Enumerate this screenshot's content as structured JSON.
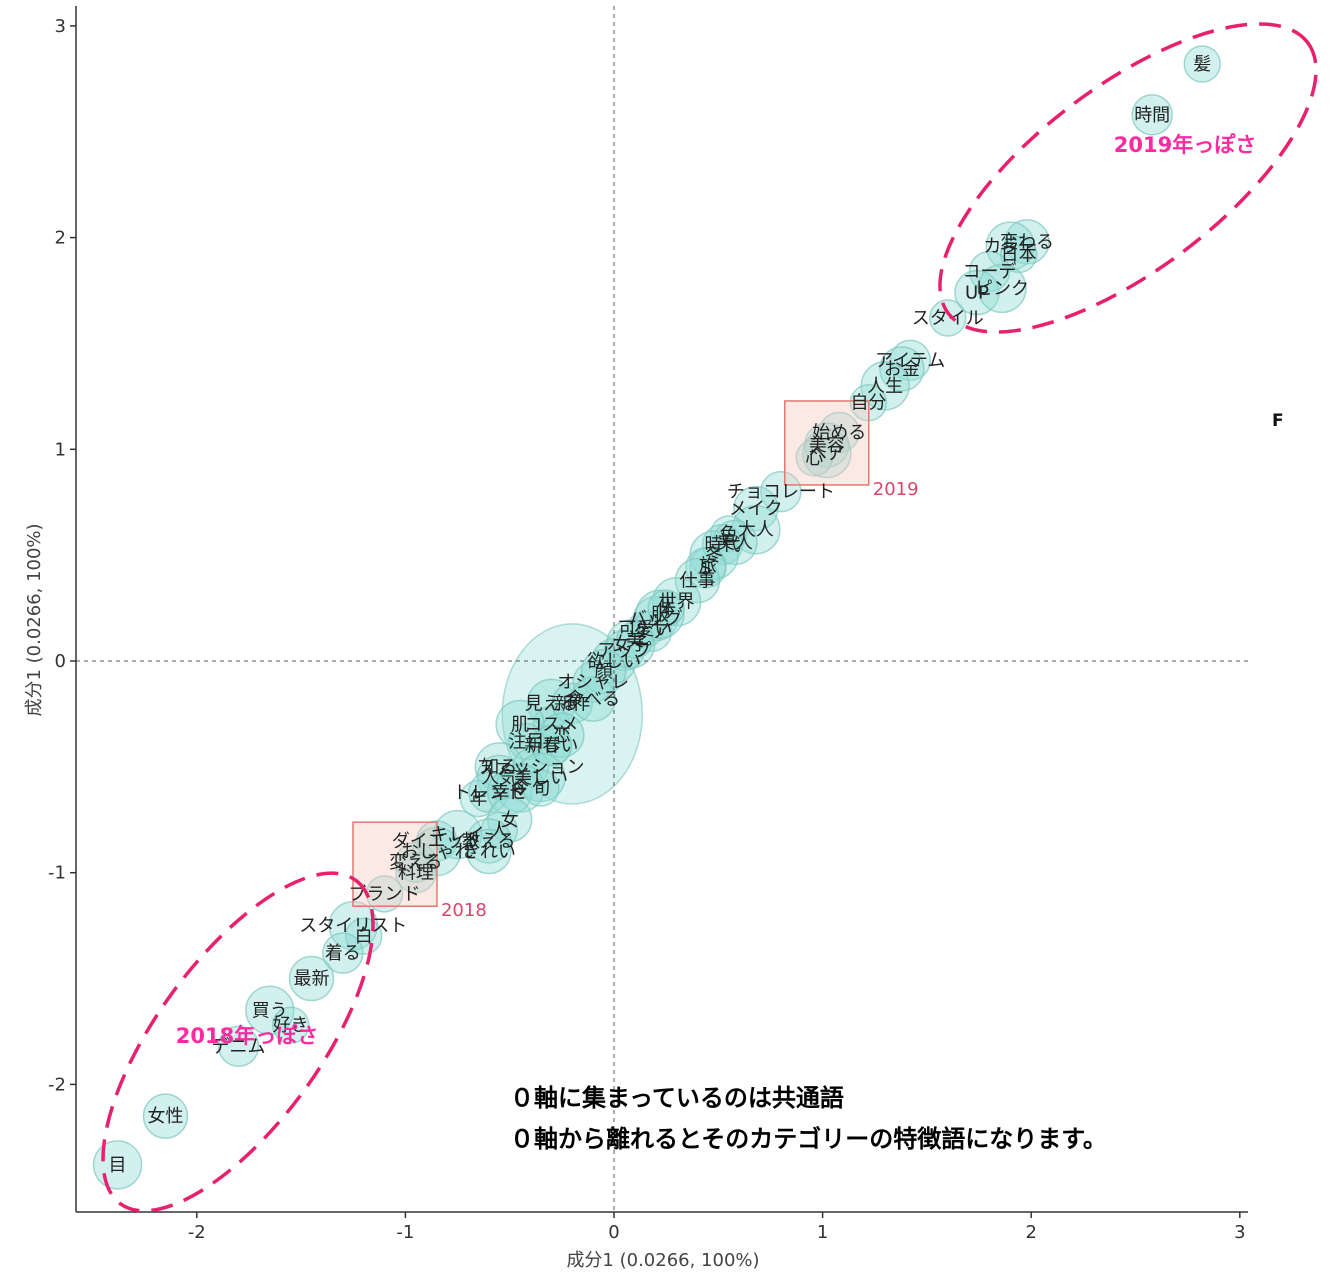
{
  "chart_data": {
    "type": "scatter",
    "xlabel": "成分1 (0.0266, 100%)",
    "ylabel": "成分1 (0.0266, 100%)",
    "xlim": [
      -2.6,
      3.05
    ],
    "ylim": [
      -2.6,
      3.1
    ],
    "x_ticks": [
      -2,
      -1,
      0,
      1,
      2,
      3
    ],
    "y_ticks": [
      -2,
      -1,
      0,
      1,
      2,
      3
    ],
    "reference_lines": {
      "x": 0,
      "y": 0,
      "style": "dashed"
    },
    "grid": false,
    "marker_color": "#8fdcd4",
    "accent_color": "#ff2aa0",
    "categories": [
      {
        "label": "2018",
        "x": -1.05,
        "y": -0.96
      },
      {
        "label": "2019",
        "x": 1.02,
        "y": 1.03
      }
    ],
    "words": [
      {
        "label": "髪",
        "x": 2.82,
        "y": 2.82
      },
      {
        "label": "時間",
        "x": 2.58,
        "y": 2.58
      },
      {
        "label": "変わる",
        "x": 1.98,
        "y": 1.98
      },
      {
        "label": "カラー",
        "x": 1.9,
        "y": 1.96
      },
      {
        "label": "日本",
        "x": 1.94,
        "y": 1.92
      },
      {
        "label": "コーデ",
        "x": 1.8,
        "y": 1.84
      },
      {
        "label": "UP",
        "x": 1.74,
        "y": 1.74
      },
      {
        "label": "ピンク",
        "x": 1.86,
        "y": 1.76
      },
      {
        "label": "スタイル",
        "x": 1.6,
        "y": 1.62
      },
      {
        "label": "アイテム",
        "x": 1.42,
        "y": 1.42
      },
      {
        "label": "お金",
        "x": 1.38,
        "y": 1.38
      },
      {
        "label": "人生",
        "x": 1.3,
        "y": 1.3
      },
      {
        "label": "自分",
        "x": 1.22,
        "y": 1.22
      },
      {
        "label": "始める",
        "x": 1.08,
        "y": 1.08
      },
      {
        "label": "美容",
        "x": 1.02,
        "y": 1.02
      },
      {
        "label": "ヘア",
        "x": 1.02,
        "y": 0.98
      },
      {
        "label": "心",
        "x": 0.96,
        "y": 0.96
      },
      {
        "label": "チョコレート",
        "x": 0.8,
        "y": 0.8
      },
      {
        "label": "メイク",
        "x": 0.68,
        "y": 0.72
      },
      {
        "label": "大人",
        "x": 0.68,
        "y": 0.62
      },
      {
        "label": "色",
        "x": 0.55,
        "y": 0.6
      },
      {
        "label": "時代",
        "x": 0.52,
        "y": 0.55
      },
      {
        "label": "美人",
        "x": 0.58,
        "y": 0.56
      },
      {
        "label": "冬",
        "x": 0.48,
        "y": 0.5
      },
      {
        "label": "旅",
        "x": 0.45,
        "y": 0.45
      },
      {
        "label": "S",
        "x": 0.44,
        "y": 0.44
      },
      {
        "label": "仕事",
        "x": 0.4,
        "y": 0.38
      },
      {
        "label": "世界",
        "x": 0.3,
        "y": 0.28
      },
      {
        "label": "可愛い",
        "x": 0.15,
        "y": 0.15
      },
      {
        "label": "ケア",
        "x": 0.18,
        "y": 0.14
      },
      {
        "label": "バッグ",
        "x": 0.2,
        "y": 0.2
      },
      {
        "label": "服",
        "x": 0.22,
        "y": 0.22
      },
      {
        "label": "体",
        "x": 0.25,
        "y": 0.25
      },
      {
        "label": "アップ",
        "x": 0.05,
        "y": 0.05
      },
      {
        "label": "欲しい",
        "x": 0.0,
        "y": 0.0
      },
      {
        "label": "女子",
        "x": 0.08,
        "y": 0.08
      },
      {
        "label": "美",
        "x": 0.1,
        "y": 0.1
      },
      {
        "label": "オシャレ",
        "x": -0.1,
        "y": -0.1
      },
      {
        "label": "顔",
        "x": -0.05,
        "y": -0.05
      },
      {
        "label": "見える",
        "x": -0.3,
        "y": -0.2
      },
      {
        "label": "コスメ",
        "x": -0.3,
        "y": -0.3
      },
      {
        "label": "新作",
        "x": -0.2,
        "y": -0.2
      },
      {
        "label": "食べる",
        "x": -0.1,
        "y": -0.18
      },
      {
        "label": "肌",
        "x": -0.45,
        "y": -0.3
      },
      {
        "label": "注目",
        "x": -0.42,
        "y": -0.38
      },
      {
        "label": "春",
        "x": -0.3,
        "y": -0.4
      },
      {
        "label": "恋",
        "x": -0.25,
        "y": -0.35
      },
      {
        "label": "知る",
        "x": -0.55,
        "y": -0.5
      },
      {
        "label": "ファッション",
        "x": -0.4,
        "y": -0.5
      },
      {
        "label": "新しい",
        "x": -0.3,
        "y": -0.4
      },
      {
        "label": "人気",
        "x": -0.55,
        "y": -0.55
      },
      {
        "label": "美しい",
        "x": -0.35,
        "y": -0.55
      },
      {
        "label": "年",
        "x": -0.65,
        "y": -0.65
      },
      {
        "label": "トレンド",
        "x": -0.6,
        "y": -0.62
      },
      {
        "label": "幸せ",
        "x": -0.5,
        "y": -0.62
      },
      {
        "label": "今",
        "x": -0.45,
        "y": -0.6
      },
      {
        "label": "旬",
        "x": -0.35,
        "y": -0.6
      },
      {
        "label": "ダイエット",
        "x": -0.85,
        "y": -0.85
      },
      {
        "label": "女",
        "x": -0.5,
        "y": -0.75
      },
      {
        "label": "キレイ",
        "x": -0.75,
        "y": -0.82
      },
      {
        "label": "人",
        "x": -0.55,
        "y": -0.8
      },
      {
        "label": "変える",
        "x": -0.95,
        "y": -0.95
      },
      {
        "label": "教える",
        "x": -0.6,
        "y": -0.85
      },
      {
        "label": "おしゃれ",
        "x": -0.85,
        "y": -0.9
      },
      {
        "label": "ブランド",
        "x": -1.1,
        "y": -1.1
      },
      {
        "label": "料理",
        "x": -0.95,
        "y": -1.0
      },
      {
        "label": "きれい",
        "x": -0.6,
        "y": -0.9
      },
      {
        "label": "スタイリスト",
        "x": -1.25,
        "y": -1.25
      },
      {
        "label": "白",
        "x": -1.2,
        "y": -1.3
      },
      {
        "label": "着る",
        "x": -1.3,
        "y": -1.38
      },
      {
        "label": "最新",
        "x": -1.45,
        "y": -1.5
      },
      {
        "label": "買う",
        "x": -1.65,
        "y": -1.65
      },
      {
        "label": "好き",
        "x": -1.55,
        "y": -1.72
      },
      {
        "label": "デニム",
        "x": -1.8,
        "y": -1.82
      },
      {
        "label": "女性",
        "x": -2.15,
        "y": -2.15
      },
      {
        "label": "目",
        "x": -2.38,
        "y": -2.38
      }
    ]
  },
  "annotations": {
    "region_2019": "2019年っぽさ",
    "region_2018": "2018年っぽさ",
    "note_line1": "０軸に集まっているのは共通語",
    "note_line2": "０軸から離れるとそのカテゴリーの特徴語になります。",
    "stray_letter": "F"
  }
}
